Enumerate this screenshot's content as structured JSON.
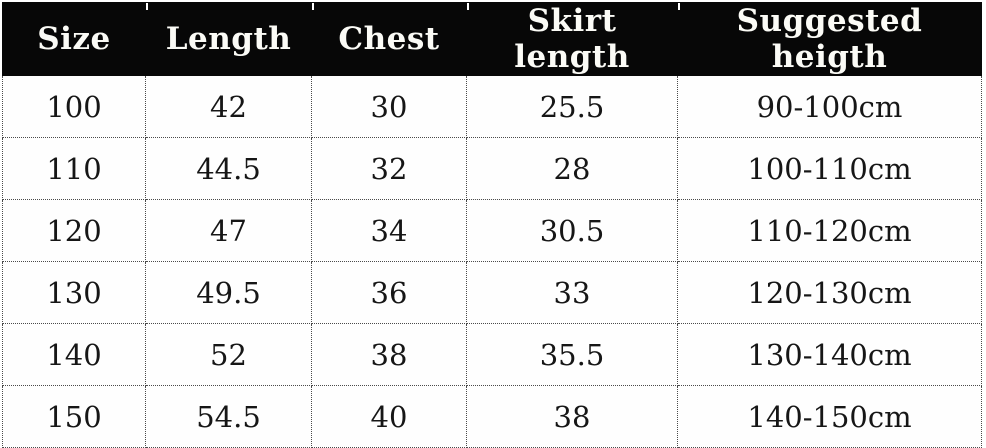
{
  "chart_data": {
    "type": "table",
    "title": "",
    "columns": [
      "Size",
      "Length",
      "Chest",
      "Skirt length",
      "Suggested heigth"
    ],
    "rows": [
      [
        "100",
        "42",
        "30",
        "25.5",
        "90-100cm"
      ],
      [
        "110",
        "44.5",
        "32",
        "28",
        "100-110cm"
      ],
      [
        "120",
        "47",
        "34",
        "30.5",
        "110-120cm"
      ],
      [
        "130",
        "49.5",
        "36",
        "33",
        "120-130cm"
      ],
      [
        "140",
        "52",
        "38",
        "35.5",
        "130-140cm"
      ],
      [
        "150",
        "54.5",
        "40",
        "38",
        "140-150cm"
      ]
    ],
    "layout_hints": {
      "header_background": "#070707",
      "header_text_color": "#fbfbf6",
      "body_text_color": "#161616",
      "grid_style": "dotted",
      "grid_color": "#4a4a4a",
      "background": "#ffffff"
    }
  }
}
